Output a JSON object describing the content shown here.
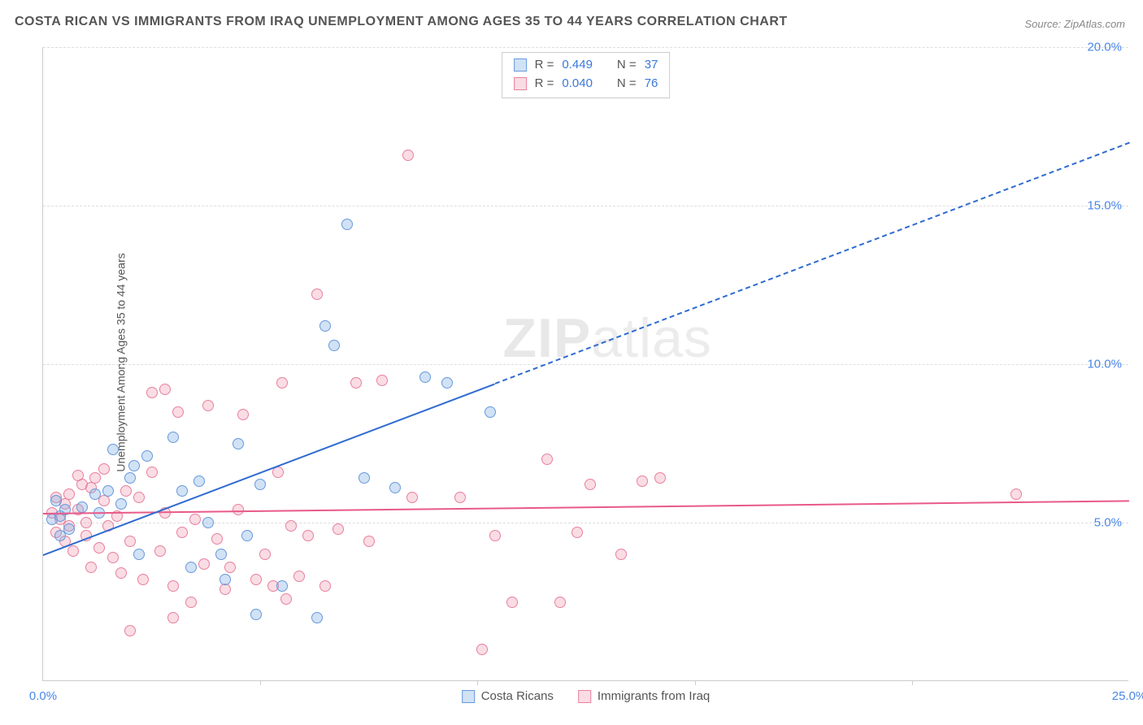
{
  "title": "COSTA RICAN VS IMMIGRANTS FROM IRAQ UNEMPLOYMENT AMONG AGES 35 TO 44 YEARS CORRELATION CHART",
  "source": "Source: ZipAtlas.com",
  "ylabel": "Unemployment Among Ages 35 to 44 years",
  "watermark_a": "ZIP",
  "watermark_b": "atlas",
  "chart": {
    "type": "scatter",
    "xlim": [
      0,
      25
    ],
    "ylim": [
      0,
      20
    ],
    "background_color": "#ffffff",
    "grid_color": "#dddddd",
    "axis_color": "#cccccc",
    "ytick_values": [
      5,
      10,
      15,
      20
    ],
    "ytick_labels": [
      "5.0%",
      "10.0%",
      "15.0%",
      "20.0%"
    ],
    "ytick_color": "#4a86e8",
    "xtick_left_value": 0,
    "xtick_left_label": "0.0%",
    "xtick_left_color": "#4a86e8",
    "xtick_right_value": 25,
    "xtick_right_label": "25.0%",
    "xtick_right_color": "#4a86e8",
    "x_major_ticks": [
      5,
      10,
      15,
      20
    ],
    "point_radius": 7,
    "point_border_width": 1.3,
    "series_a": {
      "label": "Costa Ricans",
      "fill": "rgba(123,171,227,0.35)",
      "stroke": "#6699dd",
      "trend_color": "#2f6bd0",
      "R": "0.449",
      "N": "37",
      "trend_start": {
        "x": 0,
        "y": 4.0
      },
      "trend_solid_end": {
        "x": 10.4,
        "y": 9.4
      },
      "trend_dash_end": {
        "x": 25,
        "y": 17.0
      },
      "points": [
        {
          "x": 0.2,
          "y": 5.1
        },
        {
          "x": 0.3,
          "y": 5.7
        },
        {
          "x": 0.4,
          "y": 5.2
        },
        {
          "x": 0.5,
          "y": 5.4
        },
        {
          "x": 0.6,
          "y": 4.8
        },
        {
          "x": 0.4,
          "y": 4.6
        },
        {
          "x": 0.9,
          "y": 5.5
        },
        {
          "x": 1.2,
          "y": 5.9
        },
        {
          "x": 1.3,
          "y": 5.3
        },
        {
          "x": 1.5,
          "y": 6.0
        },
        {
          "x": 1.6,
          "y": 7.3
        },
        {
          "x": 1.8,
          "y": 5.6
        },
        {
          "x": 2.0,
          "y": 6.4
        },
        {
          "x": 2.1,
          "y": 6.8
        },
        {
          "x": 2.2,
          "y": 4.0
        },
        {
          "x": 2.4,
          "y": 7.1
        },
        {
          "x": 3.0,
          "y": 7.7
        },
        {
          "x": 3.2,
          "y": 6.0
        },
        {
          "x": 3.4,
          "y": 3.6
        },
        {
          "x": 3.6,
          "y": 6.3
        },
        {
          "x": 3.8,
          "y": 5.0
        },
        {
          "x": 4.1,
          "y": 4.0
        },
        {
          "x": 4.2,
          "y": 3.2
        },
        {
          "x": 4.5,
          "y": 7.5
        },
        {
          "x": 4.9,
          "y": 2.1
        },
        {
          "x": 5.0,
          "y": 6.2
        },
        {
          "x": 5.5,
          "y": 3.0
        },
        {
          "x": 6.3,
          "y": 2.0
        },
        {
          "x": 6.5,
          "y": 11.2
        },
        {
          "x": 6.7,
          "y": 10.6
        },
        {
          "x": 7.0,
          "y": 14.4
        },
        {
          "x": 7.4,
          "y": 6.4
        },
        {
          "x": 8.1,
          "y": 6.1
        },
        {
          "x": 8.8,
          "y": 9.6
        },
        {
          "x": 9.3,
          "y": 9.4
        },
        {
          "x": 10.3,
          "y": 8.5
        },
        {
          "x": 4.7,
          "y": 4.6
        }
      ]
    },
    "series_b": {
      "label": "Immigrants from Iraq",
      "fill": "rgba(241,157,179,0.35)",
      "stroke": "#e87f9e",
      "trend_color": "#e85a88",
      "R": "0.040",
      "N": "76",
      "trend_start": {
        "x": 0,
        "y": 5.3
      },
      "trend_solid_end": {
        "x": 25,
        "y": 5.7
      },
      "points": [
        {
          "x": 0.2,
          "y": 5.3
        },
        {
          "x": 0.3,
          "y": 4.7
        },
        {
          "x": 0.4,
          "y": 5.1
        },
        {
          "x": 0.5,
          "y": 5.6
        },
        {
          "x": 0.5,
          "y": 4.4
        },
        {
          "x": 0.6,
          "y": 5.9
        },
        {
          "x": 0.7,
          "y": 4.1
        },
        {
          "x": 0.8,
          "y": 5.4
        },
        {
          "x": 0.9,
          "y": 6.2
        },
        {
          "x": 1.0,
          "y": 4.6
        },
        {
          "x": 1.0,
          "y": 5.0
        },
        {
          "x": 1.1,
          "y": 3.6
        },
        {
          "x": 1.2,
          "y": 6.4
        },
        {
          "x": 1.3,
          "y": 4.2
        },
        {
          "x": 1.4,
          "y": 5.7
        },
        {
          "x": 1.5,
          "y": 4.9
        },
        {
          "x": 1.6,
          "y": 3.9
        },
        {
          "x": 1.7,
          "y": 5.2
        },
        {
          "x": 1.8,
          "y": 3.4
        },
        {
          "x": 1.9,
          "y": 6.0
        },
        {
          "x": 2.0,
          "y": 4.4
        },
        {
          "x": 2.2,
          "y": 5.8
        },
        {
          "x": 2.3,
          "y": 3.2
        },
        {
          "x": 2.5,
          "y": 6.6
        },
        {
          "x": 2.5,
          "y": 9.1
        },
        {
          "x": 2.7,
          "y": 4.1
        },
        {
          "x": 2.8,
          "y": 5.3
        },
        {
          "x": 2.8,
          "y": 9.2
        },
        {
          "x": 3.0,
          "y": 3.0
        },
        {
          "x": 3.1,
          "y": 8.5
        },
        {
          "x": 3.2,
          "y": 4.7
        },
        {
          "x": 3.4,
          "y": 2.5
        },
        {
          "x": 3.5,
          "y": 5.1
        },
        {
          "x": 3.7,
          "y": 3.7
        },
        {
          "x": 3.8,
          "y": 8.7
        },
        {
          "x": 4.0,
          "y": 4.5
        },
        {
          "x": 4.2,
          "y": 2.9
        },
        {
          "x": 4.3,
          "y": 3.6
        },
        {
          "x": 4.6,
          "y": 8.4
        },
        {
          "x": 4.9,
          "y": 3.2
        },
        {
          "x": 5.1,
          "y": 4.0
        },
        {
          "x": 5.3,
          "y": 3.0
        },
        {
          "x": 5.4,
          "y": 6.6
        },
        {
          "x": 5.5,
          "y": 9.4
        },
        {
          "x": 5.6,
          "y": 2.6
        },
        {
          "x": 5.9,
          "y": 3.3
        },
        {
          "x": 6.1,
          "y": 4.6
        },
        {
          "x": 6.3,
          "y": 12.2
        },
        {
          "x": 6.5,
          "y": 3.0
        },
        {
          "x": 6.8,
          "y": 4.8
        },
        {
          "x": 7.2,
          "y": 9.4
        },
        {
          "x": 7.5,
          "y": 4.4
        },
        {
          "x": 7.8,
          "y": 9.5
        },
        {
          "x": 8.4,
          "y": 16.6
        },
        {
          "x": 8.5,
          "y": 5.8
        },
        {
          "x": 9.6,
          "y": 5.8
        },
        {
          "x": 10.1,
          "y": 1.0
        },
        {
          "x": 10.4,
          "y": 4.6
        },
        {
          "x": 10.8,
          "y": 2.5
        },
        {
          "x": 11.6,
          "y": 7.0
        },
        {
          "x": 11.9,
          "y": 2.5
        },
        {
          "x": 12.3,
          "y": 4.7
        },
        {
          "x": 12.6,
          "y": 6.2
        },
        {
          "x": 13.3,
          "y": 4.0
        },
        {
          "x": 13.8,
          "y": 6.3
        },
        {
          "x": 14.2,
          "y": 6.4
        },
        {
          "x": 22.4,
          "y": 5.9
        },
        {
          "x": 2.0,
          "y": 1.6
        },
        {
          "x": 3.0,
          "y": 2.0
        },
        {
          "x": 1.1,
          "y": 6.1
        },
        {
          "x": 0.3,
          "y": 5.8
        },
        {
          "x": 0.6,
          "y": 4.9
        },
        {
          "x": 0.8,
          "y": 6.5
        },
        {
          "x": 1.4,
          "y": 6.7
        },
        {
          "x": 4.5,
          "y": 5.4
        },
        {
          "x": 5.7,
          "y": 4.9
        }
      ]
    }
  },
  "stats_box": {
    "label_R": "R  =",
    "label_N": "N  =",
    "value_color": "#3b78d8",
    "text_color": "#555555"
  },
  "legend": {
    "text_color": "#555555"
  }
}
